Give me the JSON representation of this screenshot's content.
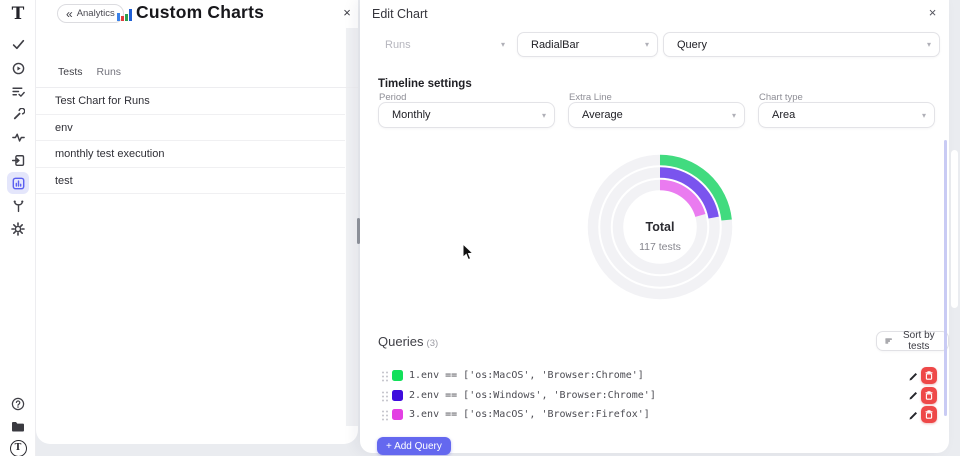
{
  "sidebar": {
    "logo_letter": "T",
    "icons": [
      "check",
      "play-circle",
      "list-check",
      "wrench",
      "activity",
      "import-box",
      "charts",
      "branch",
      "settings"
    ],
    "active_icon": "charts",
    "bottom_icons": [
      "help",
      "folder",
      "avatar"
    ],
    "avatar_letter": "T"
  },
  "list_panel": {
    "back_button": {
      "chevrons": "«",
      "label": "Analytics"
    },
    "title": "Custom Charts",
    "title_icon": "bar-chart-icon",
    "close": "×",
    "tabs": [
      {
        "label": "Tests"
      },
      {
        "label": "Runs"
      }
    ],
    "items": [
      "Test Chart for Runs",
      "env",
      "monthly test execution",
      "test"
    ]
  },
  "edit_panel": {
    "title": "Edit Chart",
    "close": "×",
    "source_select": {
      "value": "Runs",
      "disabled": true
    },
    "type_select": {
      "value": "RadialBar"
    },
    "mode_select": {
      "value": "Query"
    },
    "timeline": {
      "heading": "Timeline settings",
      "fields": [
        {
          "label": "Period",
          "value": "Monthly"
        },
        {
          "label": "Extra Line",
          "value": "Average"
        },
        {
          "label": "Chart type",
          "value": "Area"
        }
      ]
    },
    "queries": {
      "heading": "Queries",
      "count": "(3)",
      "sort_button": "Sort by tests",
      "items": [
        {
          "label": "1.env == ['os:MacOS', 'Browser:Chrome']",
          "swatch_color": "#12e05a"
        },
        {
          "label": "2.env == ['os:Windows', 'Browser:Chrome']",
          "swatch_color": "#3f0cdd"
        },
        {
          "label": "3.env == ['os:MacOS', 'Browser:Firefox']",
          "swatch_color": "#e33fe3"
        }
      ],
      "add_button": "+ Add Query"
    }
  },
  "chart_data": {
    "type": "radialBar",
    "center_title": "Total",
    "center_subtitle": "117 tests",
    "total_tests": 117,
    "start_angle_deg": 0,
    "track_color": "#f2f2f5",
    "legend": "none",
    "series": [
      {
        "name": "env == ['os:MacOS', 'Browser:Chrome']",
        "color": "#41db7f",
        "sweep_deg": 84,
        "percent_est": 23
      },
      {
        "name": "env == ['os:Windows', 'Browser:Chrome']",
        "color": "#7a54ee",
        "sweep_deg": 80,
        "percent_est": 22
      },
      {
        "name": "env == ['os:MacOS', 'Browser:Firefox']",
        "color": "#ea7bf0",
        "sweep_deg": 74,
        "percent_est": 21
      }
    ]
  },
  "colors": {
    "accent": "#6366f1",
    "add_button_bg": "#6468ef",
    "delete_button_bg": "#ee4848",
    "active_nav_bg": "#e4e6fb",
    "scrollbar_thumb": "#c9cbf4"
  }
}
